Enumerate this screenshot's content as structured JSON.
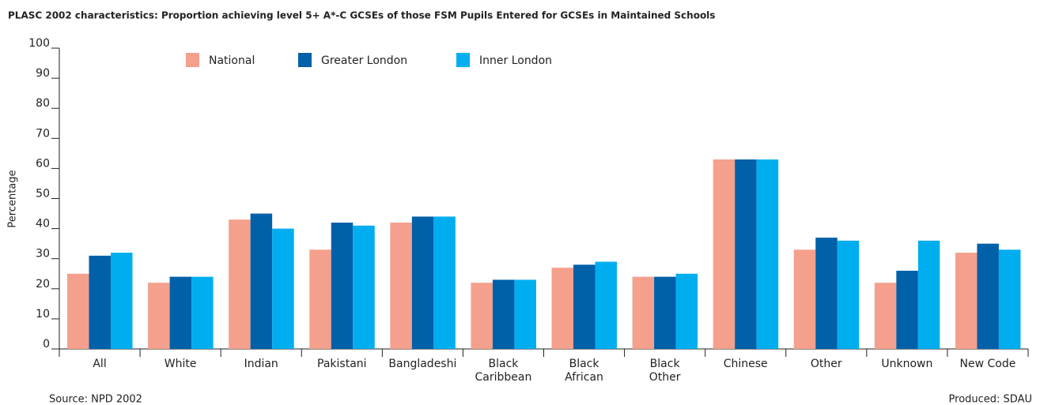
{
  "chart_data": {
    "type": "bar",
    "title": "PLASC 2002 characteristics: Proportion achieving level 5+ A*-C GCSEs of those FSM Pupils Entered for GCSEs in Maintained Schools",
    "ylabel": "Percentage",
    "source": "Source: NPD 2002",
    "credit": "Produced: SDAU",
    "categories": [
      "All",
      "White",
      "Indian",
      "Pakistani",
      "Bangladeshi",
      "Black\nCaribbean",
      "Black\nAfrican",
      "Black\nOther",
      "Chinese",
      "Other",
      "Unknown",
      "New Code"
    ],
    "series": [
      {
        "name": "National",
        "color": "#f4a08c",
        "values": [
          25,
          22,
          43,
          33,
          42,
          22,
          27,
          24,
          63,
          33,
          22,
          32
        ]
      },
      {
        "name": "Greater London",
        "color": "#0060a8",
        "values": [
          31,
          24,
          45,
          42,
          44,
          23,
          28,
          24,
          63,
          37,
          26,
          35
        ]
      },
      {
        "name": "Inner London",
        "color": "#00aeef",
        "values": [
          32,
          24,
          40,
          41,
          44,
          23,
          29,
          25,
          63,
          36,
          36,
          33
        ]
      }
    ],
    "ylim": [
      0,
      100
    ],
    "yticks": [
      0,
      10,
      20,
      30,
      40,
      50,
      60,
      70,
      80,
      90,
      100
    ],
    "legend": "top"
  }
}
